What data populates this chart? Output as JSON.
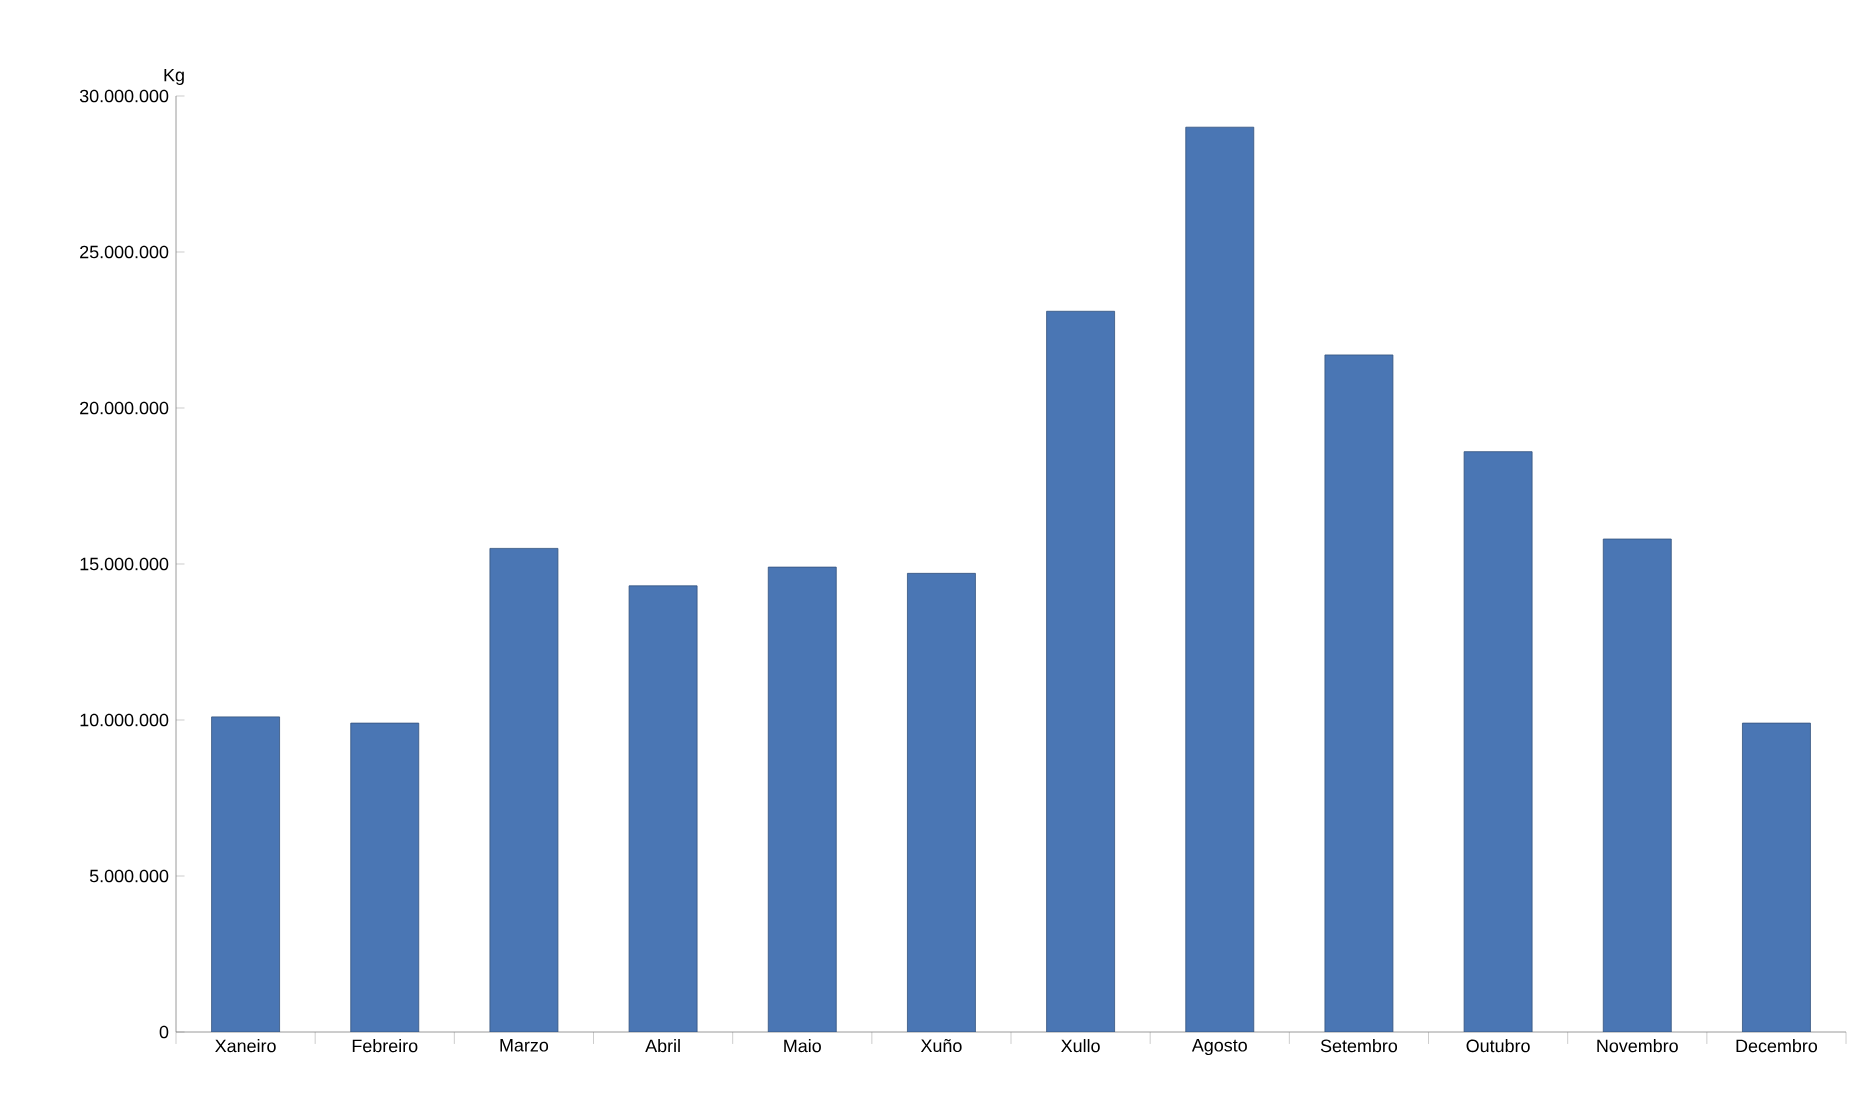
{
  "chart_data": {
    "type": "bar",
    "ylabel": "Kg",
    "categories": [
      "Xaneiro",
      "Febreiro",
      "Marzo",
      "Abril",
      "Maio",
      "Xuño",
      "Xullo",
      "Agosto",
      "Setembro",
      "Outubro",
      "Novembro",
      "Decembro"
    ],
    "values": [
      10100000,
      9900000,
      15500000,
      14300000,
      14900000,
      14700000,
      23100000,
      29000000,
      21700000,
      18600000,
      15800000,
      9900000
    ],
    "color": "#4a76b4",
    "ylim": [
      0,
      30000000
    ],
    "yticks": [
      {
        "value": 0,
        "label": "0"
      },
      {
        "value": 5000000,
        "label": "5.000.000"
      },
      {
        "value": 10000000,
        "label": "10.000.000"
      },
      {
        "value": 15000000,
        "label": "15.000.000"
      },
      {
        "value": 20000000,
        "label": "20.000.000"
      },
      {
        "value": 25000000,
        "label": "25.000.000"
      },
      {
        "value": 30000000,
        "label": "30.000.000"
      }
    ],
    "grid": false
  }
}
